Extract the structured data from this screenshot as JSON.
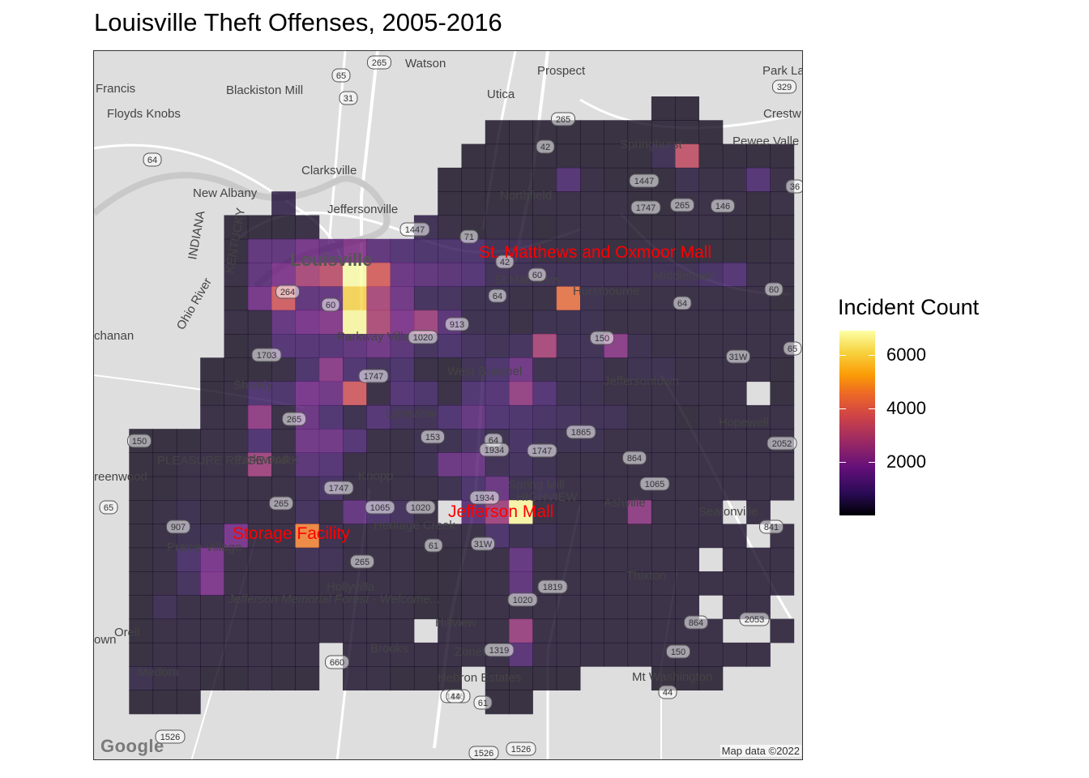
{
  "title": "Louisville Theft Offenses, 2005-2016",
  "legend": {
    "title": "Incident Count",
    "ticks": [
      {
        "value": 6000,
        "label": "6000"
      },
      {
        "value": 4000,
        "label": "4000"
      },
      {
        "value": 2000,
        "label": "2000"
      }
    ],
    "min": 0,
    "max": 6900,
    "colormap": "inferno",
    "colors": [
      "#000004",
      "#2a0b55",
      "#64107a",
      "#9b2964",
      "#cf4446",
      "#ed6925",
      "#fb9b06",
      "#f7d13d",
      "#fcffa4"
    ]
  },
  "annotations": [
    {
      "text": "St. Matthews and Oxmoor Mall",
      "color": "#ff0000"
    },
    {
      "text": "Jefferson Mall",
      "color": "#ff0000"
    },
    {
      "text": "Storage Facility",
      "color": "#ff0000"
    }
  ],
  "map": {
    "attribution": "Map data ©2022",
    "logo": "Google",
    "places": [
      "Francis",
      "Blackiston Mill",
      "Watson",
      "Prospect",
      "Park La",
      "Floyds Knobs",
      "Utica",
      "Crestw",
      "Pewee Valle",
      "Clarksville",
      "Springhurst",
      "New Albany",
      "Jeffersonville",
      "Northfield",
      "Louisville",
      "St Matthews",
      "Hurstbourne",
      "Middletown",
      "chanan",
      "Parkway Village",
      "West Buechel",
      "Shively",
      "Jeffersontown",
      "Lynnview",
      "Hopewell",
      "PLEASURE RIDGE PARK",
      "Parkwood",
      "reenwood",
      "Knopp",
      "Spring Mill",
      "HIGHVIEW",
      "Ashville",
      "Seatonville",
      "Heritage Creek",
      "Prairie Village",
      "Thixton",
      "Hollyvilla",
      "Jefferson Memorial Forest - Welcome...",
      "Orell",
      "Hillview",
      "own",
      "Brooks",
      "Zoneton",
      "Medora",
      "Hebron Estates",
      "Mt Washington",
      "INDIANA",
      "KENTUCKY",
      "Ohio River"
    ],
    "highways": [
      "265",
      "65",
      "31",
      "329",
      "64",
      "42",
      "265",
      "1447",
      "265",
      "146",
      "36",
      "1747",
      "1447",
      "71",
      "42",
      "64",
      "60",
      "264",
      "60",
      "64",
      "60",
      "913",
      "1020",
      "150",
      "1703",
      "1747",
      "31W",
      "65",
      "265",
      "64",
      "1865",
      "2052",
      "150",
      "153",
      "1934",
      "1747",
      "864",
      "1747",
      "1065",
      "1020",
      "1065",
      "65",
      "265",
      "1934",
      "907",
      "61",
      "31W",
      "841",
      "265",
      "1819",
      "1020",
      "864",
      "2053",
      "660",
      "1319",
      "150",
      "1526",
      "1116",
      "61",
      "1526",
      "44",
      "1526",
      "44",
      "61"
    ]
  },
  "heatmap_data": {
    "type": "heatmap",
    "grid_origin": "upper-left of map panel",
    "nrows": 26,
    "ncols": 29,
    "note_values": "incident count per hexbin-cell; 0 = no cell drawn",
    "rows": [
      [
        0,
        0,
        0,
        0,
        0,
        0,
        0,
        0,
        0,
        0,
        0,
        0,
        0,
        0,
        0,
        0,
        0,
        0,
        0,
        0,
        0,
        0,
        0,
        200,
        200,
        0,
        0,
        0,
        0
      ],
      [
        0,
        0,
        0,
        0,
        0,
        0,
        0,
        0,
        0,
        0,
        0,
        0,
        0,
        0,
        0,
        0,
        200,
        200,
        200,
        200,
        200,
        200,
        200,
        200,
        200,
        200,
        0,
        0,
        0
      ],
      [
        0,
        0,
        0,
        0,
        0,
        0,
        0,
        0,
        0,
        0,
        0,
        0,
        0,
        0,
        0,
        200,
        200,
        200,
        200,
        200,
        200,
        200,
        200,
        500,
        3100,
        200,
        200,
        200,
        200
      ],
      [
        0,
        0,
        0,
        0,
        0,
        0,
        0,
        0,
        0,
        0,
        0,
        0,
        0,
        0,
        200,
        200,
        200,
        200,
        200,
        1000,
        300,
        200,
        200,
        200,
        400,
        300,
        300,
        1000,
        300
      ],
      [
        0,
        0,
        0,
        0,
        0,
        0,
        0,
        500,
        0,
        0,
        0,
        0,
        0,
        0,
        200,
        200,
        200,
        200,
        300,
        300,
        300,
        300,
        200,
        200,
        300,
        300,
        300,
        200,
        300
      ],
      [
        0,
        0,
        0,
        0,
        0,
        200,
        200,
        200,
        300,
        0,
        0,
        0,
        0,
        500,
        300,
        200,
        300,
        300,
        200,
        300,
        300,
        300,
        200,
        200,
        300,
        300,
        200,
        200,
        200
      ],
      [
        0,
        0,
        0,
        0,
        0,
        200,
        1200,
        1200,
        1600,
        1400,
        1900,
        1200,
        1000,
        800,
        800,
        800,
        500,
        500,
        300,
        300,
        300,
        200,
        300,
        300,
        200,
        200,
        200,
        200,
        300
      ],
      [
        0,
        0,
        0,
        0,
        0,
        300,
        1200,
        1800,
        2600,
        3000,
        6900,
        3500,
        1400,
        1200,
        1100,
        1000,
        500,
        500,
        500,
        500,
        500,
        500,
        500,
        500,
        500,
        700,
        1000,
        300,
        300
      ],
      [
        0,
        0,
        0,
        0,
        0,
        200,
        1600,
        3400,
        1200,
        1300,
        6000,
        2600,
        1500,
        600,
        600,
        400,
        400,
        300,
        300,
        4100,
        400,
        300,
        300,
        300,
        300,
        300,
        300,
        300,
        200
      ],
      [
        0,
        0,
        0,
        0,
        0,
        300,
        300,
        1300,
        1700,
        1900,
        6800,
        2700,
        1800,
        2400,
        1100,
        400,
        400,
        300,
        400,
        400,
        400,
        300,
        300,
        300,
        300,
        300,
        300,
        300,
        300
      ],
      [
        0,
        0,
        0,
        0,
        0,
        200,
        300,
        1000,
        1000,
        1000,
        1200,
        1500,
        1100,
        600,
        800,
        600,
        500,
        600,
        2600,
        500,
        500,
        2000,
        400,
        300,
        300,
        300,
        300,
        300,
        300
      ],
      [
        0,
        0,
        0,
        0,
        200,
        200,
        200,
        300,
        800,
        2000,
        900,
        600,
        800,
        300,
        200,
        500,
        800,
        1500,
        400,
        400,
        500,
        300,
        400,
        400,
        300,
        300,
        300,
        300,
        200
      ],
      [
        0,
        0,
        0,
        0,
        200,
        300,
        900,
        800,
        1700,
        1500,
        3400,
        300,
        1000,
        800,
        300,
        900,
        1000,
        2200,
        1000,
        400,
        400,
        300,
        300,
        300,
        300,
        300,
        300,
        0,
        200
      ],
      [
        0,
        0,
        0,
        0,
        300,
        300,
        2100,
        300,
        1400,
        900,
        400,
        1000,
        600,
        500,
        900,
        1300,
        900,
        800,
        700,
        600,
        500,
        500,
        300,
        300,
        200,
        300,
        300,
        300,
        300
      ],
      [
        0,
        200,
        200,
        200,
        300,
        300,
        900,
        300,
        1500,
        1500,
        1000,
        300,
        300,
        400,
        400,
        700,
        400,
        700,
        500,
        400,
        400,
        300,
        300,
        300,
        300,
        300,
        300,
        300,
        300
      ],
      [
        0,
        200,
        200,
        300,
        300,
        300,
        2400,
        300,
        1100,
        1000,
        300,
        300,
        300,
        400,
        1400,
        1400,
        500,
        600,
        400,
        300,
        300,
        300,
        300,
        300,
        300,
        300,
        300,
        300,
        300
      ],
      [
        0,
        200,
        200,
        300,
        300,
        300,
        300,
        300,
        500,
        700,
        300,
        300,
        300,
        300,
        400,
        800,
        1400,
        400,
        500,
        300,
        300,
        300,
        300,
        300,
        300,
        300,
        300,
        300,
        300
      ],
      [
        0,
        200,
        300,
        400,
        300,
        300,
        300,
        300,
        600,
        300,
        1300,
        800,
        600,
        300,
        0,
        1100,
        2400,
        6800,
        300,
        300,
        300,
        300,
        2100,
        300,
        300,
        300,
        0,
        300,
        0
      ],
      [
        0,
        200,
        300,
        400,
        400,
        1700,
        300,
        300,
        4500,
        400,
        300,
        300,
        300,
        300,
        300,
        300,
        800,
        400,
        400,
        300,
        300,
        300,
        300,
        300,
        300,
        300,
        300,
        0,
        300
      ],
      [
        0,
        200,
        300,
        800,
        1700,
        300,
        300,
        300,
        500,
        500,
        300,
        300,
        300,
        200,
        200,
        300,
        300,
        1300,
        300,
        300,
        300,
        300,
        300,
        300,
        300,
        0,
        300,
        300,
        300
      ],
      [
        0,
        200,
        300,
        600,
        1800,
        300,
        300,
        300,
        300,
        300,
        300,
        300,
        300,
        200,
        200,
        300,
        300,
        1200,
        300,
        300,
        300,
        300,
        300,
        300,
        300,
        300,
        300,
        300,
        300
      ],
      [
        0,
        200,
        500,
        300,
        300,
        300,
        300,
        300,
        300,
        300,
        300,
        300,
        300,
        200,
        200,
        300,
        300,
        300,
        300,
        300,
        300,
        300,
        300,
        300,
        300,
        0,
        300,
        300,
        0
      ],
      [
        0,
        200,
        300,
        300,
        300,
        300,
        300,
        300,
        300,
        300,
        300,
        300,
        300,
        0,
        300,
        300,
        300,
        2300,
        300,
        300,
        300,
        300,
        300,
        300,
        300,
        300,
        0,
        0,
        300
      ],
      [
        0,
        200,
        300,
        300,
        300,
        300,
        300,
        300,
        300,
        0,
        300,
        300,
        300,
        300,
        300,
        300,
        300,
        1100,
        300,
        300,
        300,
        300,
        300,
        300,
        300,
        300,
        300,
        300,
        0
      ],
      [
        0,
        400,
        300,
        300,
        200,
        200,
        300,
        200,
        200,
        0,
        300,
        300,
        200,
        200,
        200,
        0,
        200,
        200,
        200,
        200,
        0,
        0,
        0,
        200,
        200,
        200,
        0,
        0,
        0
      ],
      [
        0,
        200,
        200,
        200,
        0,
        0,
        0,
        0,
        0,
        0,
        0,
        0,
        0,
        0,
        0,
        0,
        200,
        200,
        0,
        0,
        0,
        0,
        0,
        0,
        0,
        0,
        0,
        0,
        0
      ]
    ]
  }
}
